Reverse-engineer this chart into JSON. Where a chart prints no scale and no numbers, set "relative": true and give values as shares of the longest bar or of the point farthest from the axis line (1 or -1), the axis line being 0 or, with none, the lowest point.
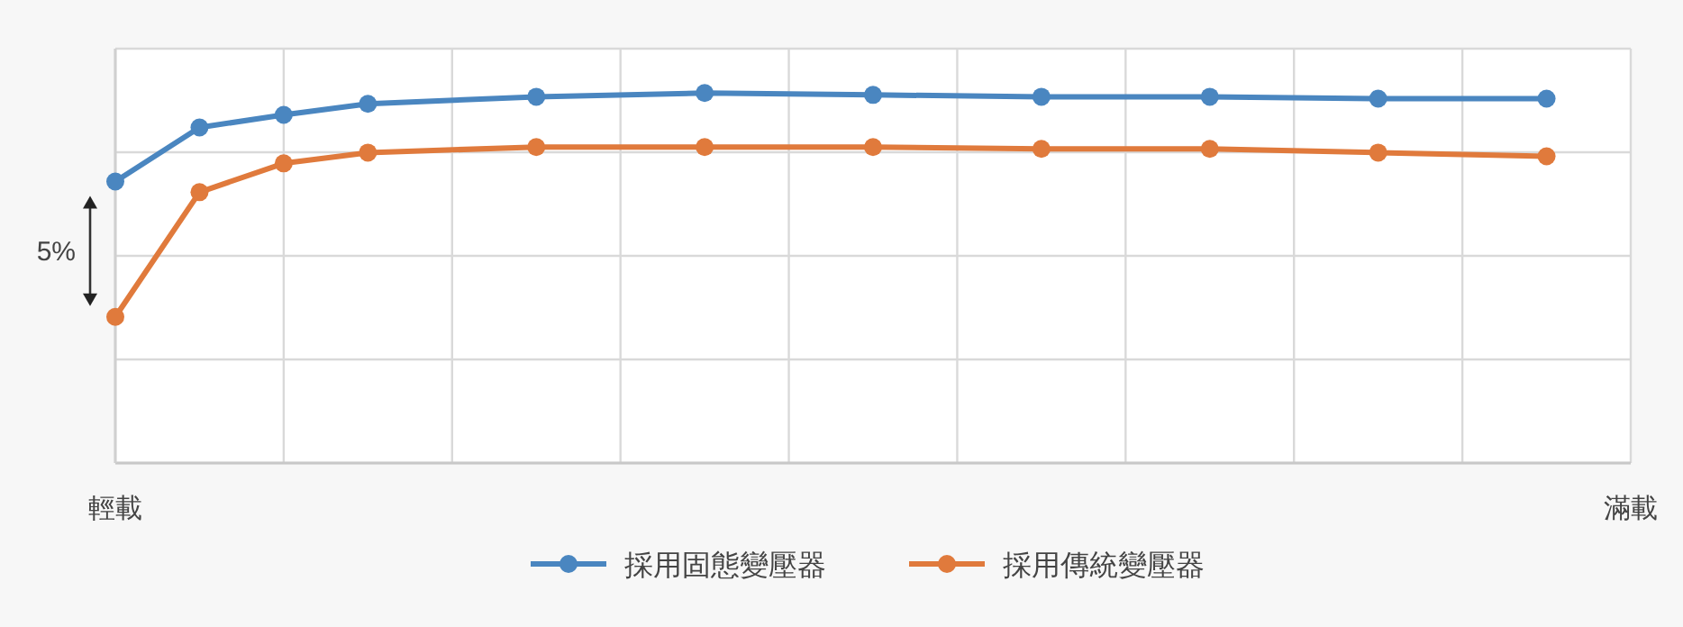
{
  "chart_data": {
    "type": "line",
    "relative": true,
    "grid": true,
    "legend": "bottom",
    "marker": "circle",
    "line_style": "solid",
    "categories": [
      "輕載",
      null,
      null,
      null,
      null,
      null,
      null,
      null,
      null,
      null,
      null,
      null,
      null,
      null,
      null,
      null,
      null,
      null,
      "滿載"
    ],
    "series": [
      {
        "name": "採用固態變壓器",
        "color": "#4a86c0",
        "values": [
          0.761,
          0.907,
          0.941,
          0.971,
          null,
          0.99,
          null,
          1,
          null,
          0.995,
          null,
          0.99,
          null,
          0.99,
          null,
          0.985,
          null,
          0.985,
          null
        ]
      },
      {
        "name": "採用傳統變壓器",
        "color": "#e07a3c",
        "values": [
          0.395,
          0.732,
          0.81,
          0.839,
          null,
          0.854,
          null,
          0.854,
          null,
          0.854,
          null,
          0.849,
          null,
          0.849,
          null,
          0.839,
          null,
          0.829,
          null
        ]
      }
    ],
    "annotations": [
      "5%"
    ]
  }
}
